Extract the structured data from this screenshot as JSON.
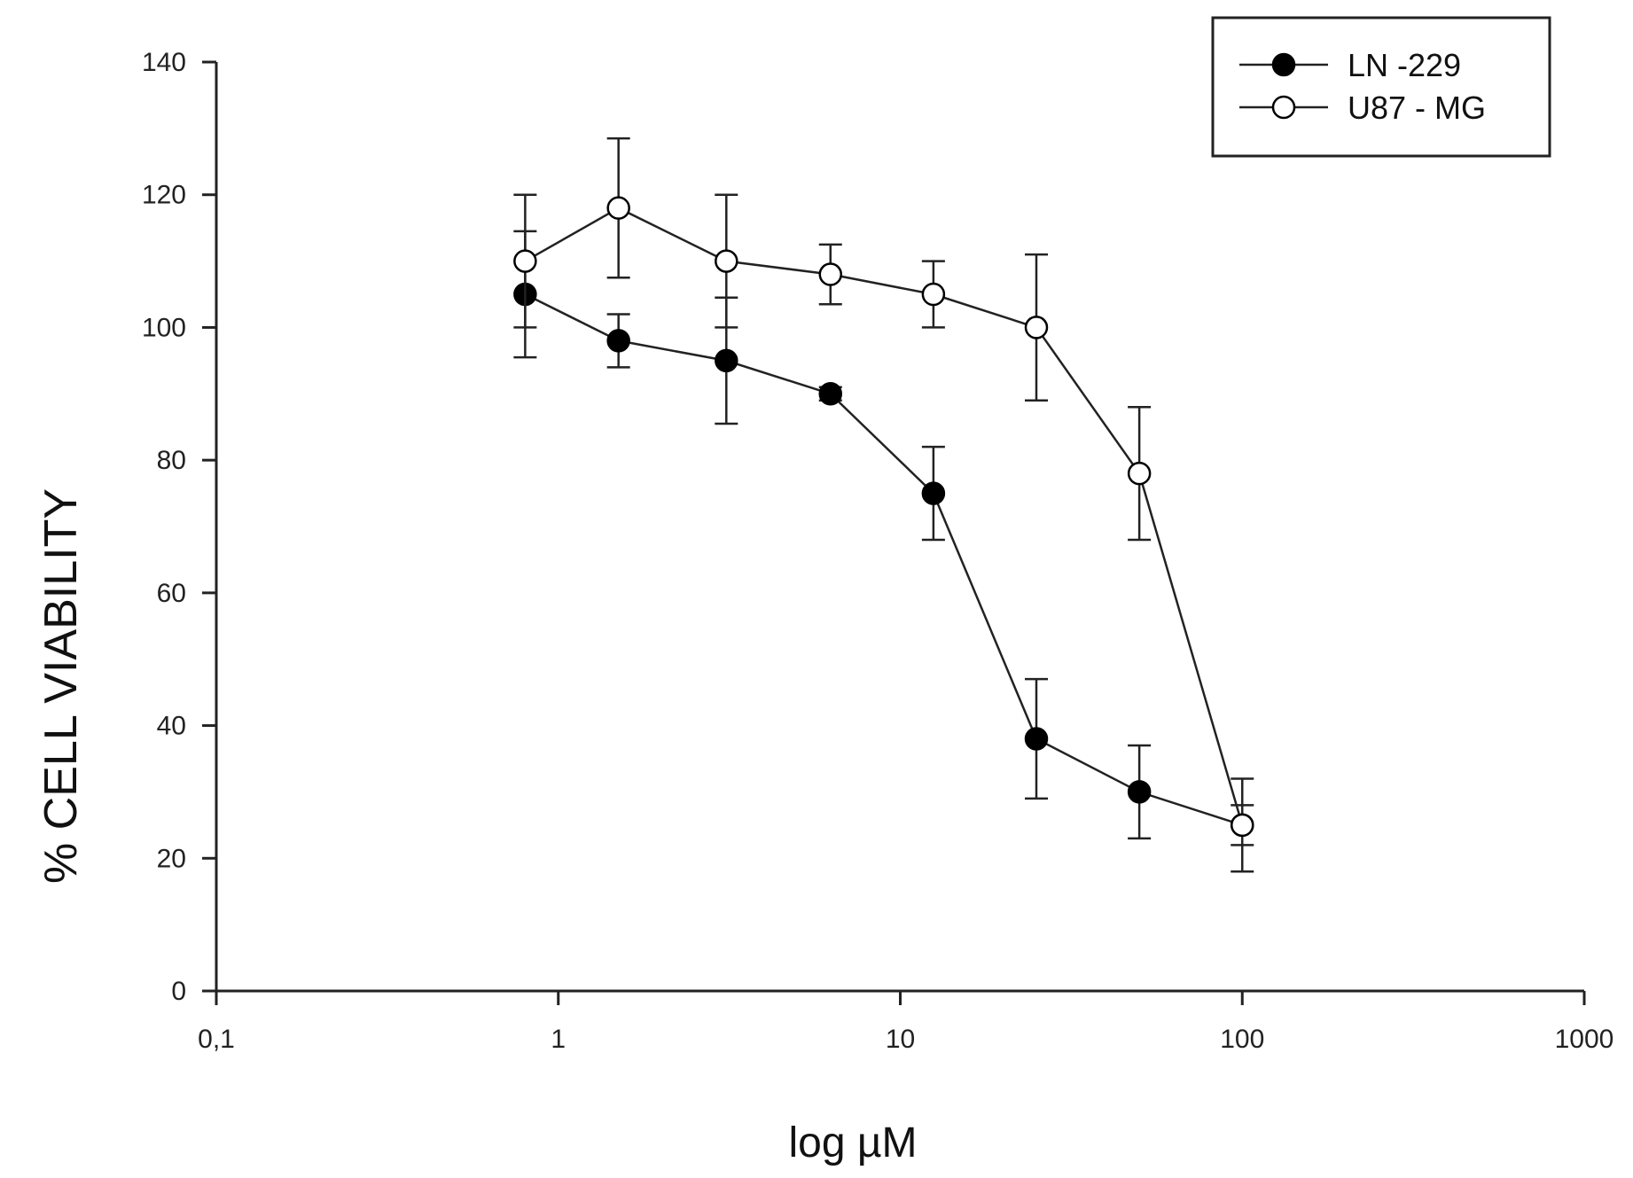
{
  "chart_data": {
    "type": "line",
    "xlabel": "log µM",
    "ylabel": "% CELL VIABILITY",
    "x_scale": "log",
    "xlim": [
      0.1,
      1000
    ],
    "ylim": [
      0,
      140
    ],
    "x_ticks": [
      0.1,
      1,
      10,
      100,
      1000
    ],
    "x_tick_labels": [
      "0,1",
      "1",
      "10",
      "100",
      "1000"
    ],
    "y_ticks": [
      0,
      20,
      40,
      60,
      80,
      100,
      120,
      140
    ],
    "y_tick_labels": [
      "0",
      "20",
      "40",
      "60",
      "80",
      "100",
      "120",
      "140"
    ],
    "grid": false,
    "legend_position": "top-right",
    "series": [
      {
        "name": "LN -229",
        "marker": "filled-circle",
        "x": [
          0.8,
          1.5,
          3.1,
          6.25,
          12.5,
          25,
          50,
          100
        ],
        "y": [
          105,
          98,
          95,
          90,
          75,
          38,
          30,
          25
        ],
        "error": [
          9.5,
          4,
          9.5,
          1,
          7,
          9,
          7,
          3
        ]
      },
      {
        "name": "U87 - MG",
        "marker": "open-circle",
        "x": [
          0.8,
          1.5,
          3.1,
          6.25,
          12.5,
          25,
          50,
          100
        ],
        "y": [
          110,
          118,
          110,
          108,
          105,
          100,
          78,
          25
        ],
        "error": [
          10,
          10.5,
          10,
          4.5,
          5,
          11,
          10,
          7
        ]
      }
    ]
  }
}
